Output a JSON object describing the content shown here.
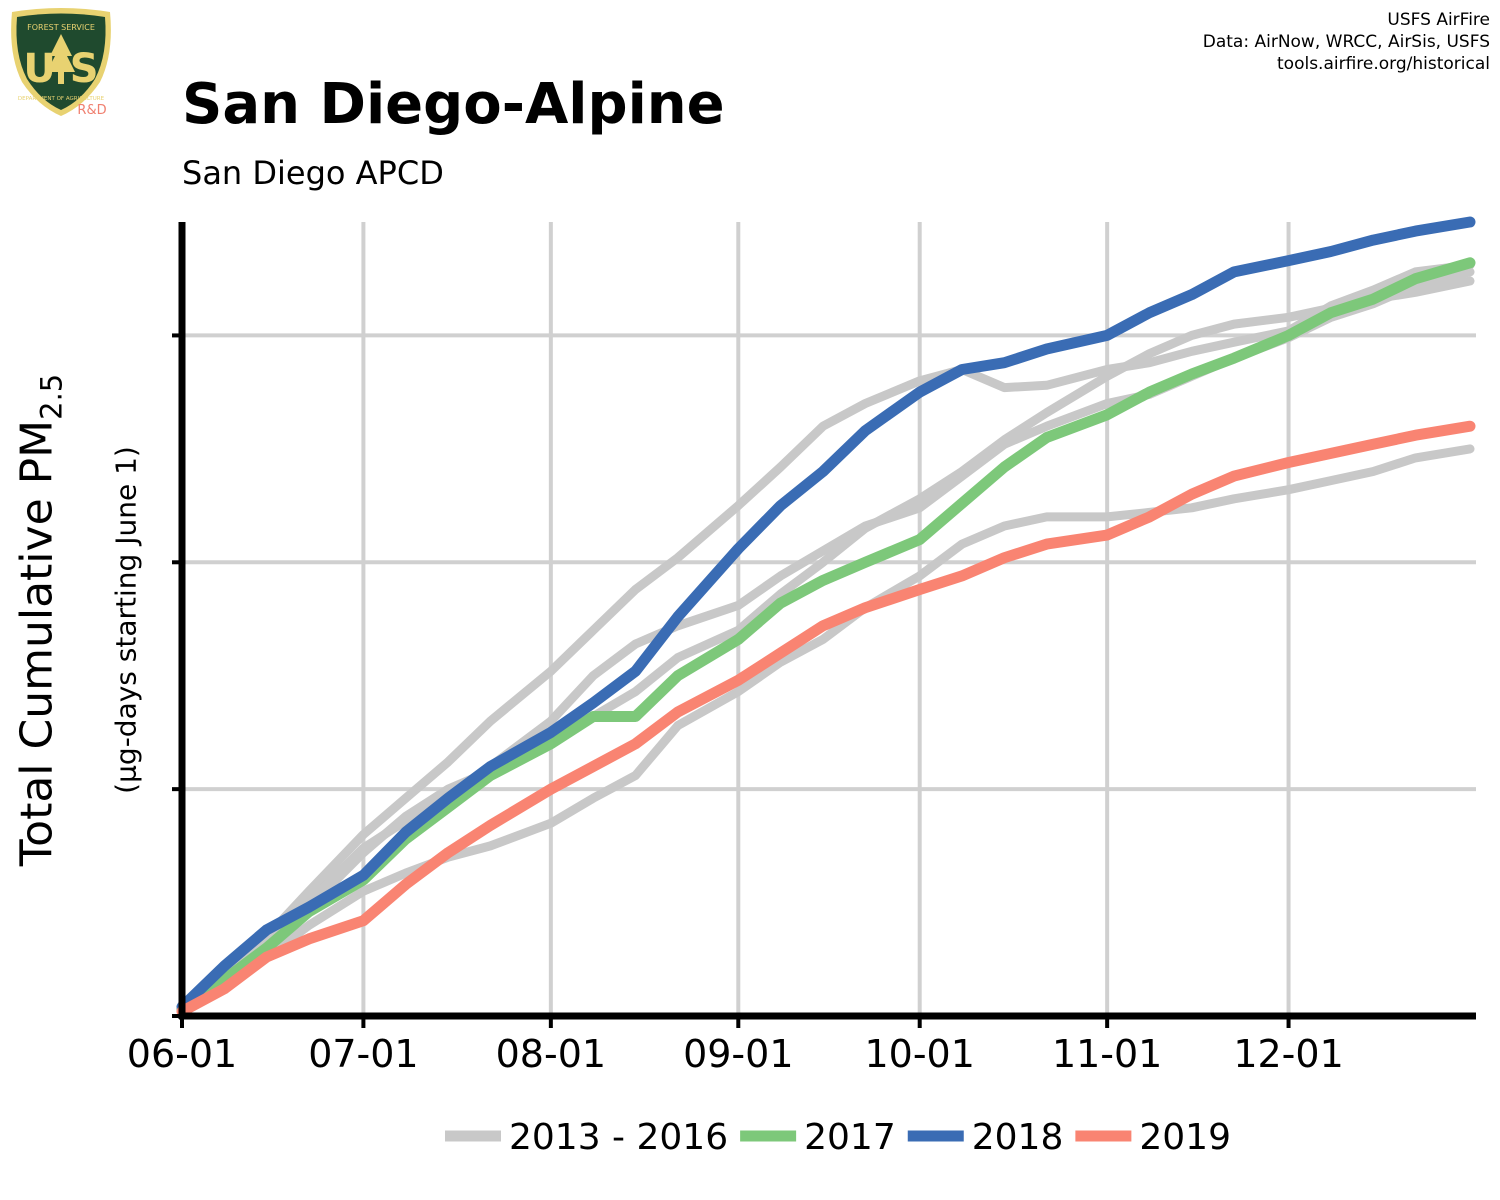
{
  "header": {
    "title": "San Diego-Alpine",
    "subtitle": "San Diego APCD",
    "credit_line1": "USFS AirFire",
    "credit_line2": "Data: AirNow, WRCC, AirSis, USFS",
    "credit_line3": "tools.airfire.org/historical"
  },
  "logo": {
    "top_text": "FOREST SERVICE",
    "letters": "U S",
    "bottom_text": "DEPARTMENT OF AGRICULTURE",
    "badge": "R&D"
  },
  "axis": {
    "ylabel_main": "Total Cumulative PM",
    "ylabel_sub_script": "2.5",
    "ylabel_units": "(µg-days starting June 1)"
  },
  "colors": {
    "background": "#ffffff",
    "grid": "#d0d0d0",
    "axis": "#000000",
    "historical": "#c8c8c8",
    "y2017": "#7dc87a",
    "y2018": "#3a6cb4",
    "y2019": "#f98472",
    "logo_green": "#1f4a2e",
    "logo_gold": "#e8d271",
    "badge": "#f08070"
  },
  "chart_data": {
    "type": "line",
    "x_type": "date",
    "xlim": [
      "06-01",
      "12-31"
    ],
    "x_ticks": [
      "06-01",
      "07-01",
      "08-01",
      "09-01",
      "10-01",
      "11-01",
      "12-01"
    ],
    "ylim": [
      0,
      3.5
    ],
    "y_ticks": [
      0,
      1,
      2,
      3
    ],
    "y_tick_labels_shown": false,
    "grid": true,
    "legend": {
      "placement": "bottom",
      "entries": [
        "2013 - 2016",
        "2017",
        "2018",
        "2019"
      ]
    },
    "series": [
      {
        "name": "2013 - 2016",
        "color": "#c8c8c8",
        "kind": "historical",
        "x": [
          "06-01",
          "06-08",
          "06-15",
          "06-22",
          "07-01",
          "07-08",
          "07-15",
          "07-22",
          "08-01",
          "08-08",
          "08-15",
          "08-22",
          "09-01",
          "09-08",
          "09-15",
          "09-22",
          "10-01",
          "10-08",
          "10-15",
          "10-22",
          "11-01",
          "11-08",
          "11-15",
          "11-22",
          "12-01",
          "12-08",
          "12-15",
          "12-22",
          "12-31"
        ],
        "y": [
          0.05,
          0.18,
          0.35,
          0.55,
          0.8,
          0.96,
          1.12,
          1.3,
          1.52,
          1.7,
          1.88,
          2.02,
          2.25,
          2.42,
          2.6,
          2.7,
          2.8,
          2.85,
          2.77,
          2.78,
          2.85,
          2.88,
          2.93,
          2.97,
          3.02,
          3.13,
          3.2,
          3.28,
          3.31
        ]
      },
      {
        "name": "2013 - 2016",
        "color": "#c8c8c8",
        "kind": "historical",
        "x": [
          "06-01",
          "06-08",
          "06-15",
          "06-22",
          "07-01",
          "07-08",
          "07-15",
          "07-22",
          "08-01",
          "08-08",
          "08-15",
          "08-22",
          "09-01",
          "09-08",
          "09-15",
          "09-22",
          "10-01",
          "10-08",
          "10-15",
          "10-22",
          "11-01",
          "11-08",
          "11-15",
          "11-22",
          "12-01",
          "12-08",
          "12-15",
          "12-22",
          "12-31"
        ],
        "y": [
          0.03,
          0.17,
          0.32,
          0.5,
          0.74,
          0.86,
          0.96,
          1.1,
          1.3,
          1.5,
          1.64,
          1.72,
          1.81,
          1.94,
          2.05,
          2.16,
          2.24,
          2.38,
          2.52,
          2.6,
          2.7,
          2.74,
          2.82,
          2.9,
          2.99,
          3.08,
          3.14,
          3.22,
          3.28
        ]
      },
      {
        "name": "2013 - 2016",
        "color": "#c8c8c8",
        "kind": "historical",
        "x": [
          "06-01",
          "06-08",
          "06-15",
          "06-22",
          "07-01",
          "07-08",
          "07-15",
          "07-22",
          "08-01",
          "08-08",
          "08-15",
          "08-22",
          "09-01",
          "09-08",
          "09-15",
          "09-22",
          "10-01",
          "10-08",
          "10-15",
          "10-22",
          "11-01",
          "11-08",
          "11-15",
          "11-22",
          "12-01",
          "12-08",
          "12-15",
          "12-22",
          "12-31"
        ],
        "y": [
          0.03,
          0.15,
          0.3,
          0.48,
          0.72,
          0.88,
          1.0,
          1.08,
          1.2,
          1.32,
          1.43,
          1.58,
          1.7,
          1.86,
          2.0,
          2.15,
          2.28,
          2.4,
          2.54,
          2.66,
          2.82,
          2.92,
          3.0,
          3.05,
          3.08,
          3.12,
          3.16,
          3.19,
          3.24
        ]
      },
      {
        "name": "2013 - 2016",
        "color": "#c8c8c8",
        "kind": "historical",
        "x": [
          "06-01",
          "06-08",
          "06-15",
          "06-22",
          "07-01",
          "07-08",
          "07-15",
          "07-22",
          "08-01",
          "08-08",
          "08-15",
          "08-22",
          "09-01",
          "09-08",
          "09-15",
          "09-22",
          "10-01",
          "10-08",
          "10-15",
          "10-22",
          "11-01",
          "11-08",
          "11-15",
          "11-22",
          "12-01",
          "12-08",
          "12-15",
          "12-22",
          "12-31"
        ],
        "y": [
          0.02,
          0.12,
          0.26,
          0.4,
          0.55,
          0.63,
          0.7,
          0.75,
          0.85,
          0.96,
          1.06,
          1.28,
          1.43,
          1.56,
          1.66,
          1.8,
          1.94,
          2.08,
          2.16,
          2.2,
          2.2,
          2.22,
          2.24,
          2.28,
          2.32,
          2.36,
          2.4,
          2.46,
          2.5
        ]
      },
      {
        "name": "2017",
        "color": "#7dc87a",
        "kind": "highlight",
        "x": [
          "06-01",
          "06-08",
          "06-15",
          "06-22",
          "07-01",
          "07-08",
          "07-15",
          "07-22",
          "08-01",
          "08-08",
          "08-15",
          "08-22",
          "09-01",
          "09-08",
          "09-15",
          "09-22",
          "10-01",
          "10-08",
          "10-15",
          "10-22",
          "11-01",
          "11-08",
          "11-15",
          "11-22",
          "12-01",
          "12-08",
          "12-15",
          "12-22",
          "12-31"
        ],
        "y": [
          0.03,
          0.16,
          0.3,
          0.46,
          0.6,
          0.78,
          0.92,
          1.06,
          1.2,
          1.32,
          1.32,
          1.5,
          1.66,
          1.82,
          1.92,
          2.0,
          2.1,
          2.26,
          2.42,
          2.55,
          2.65,
          2.75,
          2.83,
          2.9,
          3.0,
          3.1,
          3.16,
          3.25,
          3.32
        ]
      },
      {
        "name": "2018",
        "color": "#3a6cb4",
        "kind": "highlight",
        "x": [
          "06-01",
          "06-08",
          "06-15",
          "06-22",
          "07-01",
          "07-08",
          "07-15",
          "07-22",
          "08-01",
          "08-08",
          "08-15",
          "08-22",
          "09-01",
          "09-08",
          "09-15",
          "09-22",
          "10-01",
          "10-08",
          "10-15",
          "10-22",
          "11-01",
          "11-08",
          "11-15",
          "11-22",
          "12-01",
          "12-08",
          "12-15",
          "12-22",
          "12-31"
        ],
        "y": [
          0.04,
          0.22,
          0.38,
          0.48,
          0.62,
          0.81,
          0.96,
          1.1,
          1.25,
          1.38,
          1.52,
          1.76,
          2.06,
          2.25,
          2.4,
          2.58,
          2.75,
          2.85,
          2.88,
          2.94,
          3.0,
          3.1,
          3.18,
          3.28,
          3.33,
          3.37,
          3.42,
          3.46,
          3.5
        ]
      },
      {
        "name": "2019",
        "color": "#f98472",
        "kind": "highlight",
        "x": [
          "06-01",
          "06-08",
          "06-15",
          "06-22",
          "07-01",
          "07-08",
          "07-15",
          "07-22",
          "08-01",
          "08-08",
          "08-15",
          "08-22",
          "09-01",
          "09-08",
          "09-15",
          "09-22",
          "10-01",
          "10-08",
          "10-15",
          "10-22",
          "11-01",
          "11-08",
          "11-15",
          "11-22",
          "12-01",
          "12-08",
          "12-15",
          "12-22",
          "12-31"
        ],
        "y": [
          0.02,
          0.12,
          0.26,
          0.34,
          0.42,
          0.58,
          0.72,
          0.84,
          1.0,
          1.1,
          1.2,
          1.34,
          1.48,
          1.6,
          1.72,
          1.8,
          1.88,
          1.94,
          2.02,
          2.08,
          2.12,
          2.2,
          2.3,
          2.38,
          2.44,
          2.48,
          2.52,
          2.56,
          2.6
        ]
      }
    ]
  }
}
